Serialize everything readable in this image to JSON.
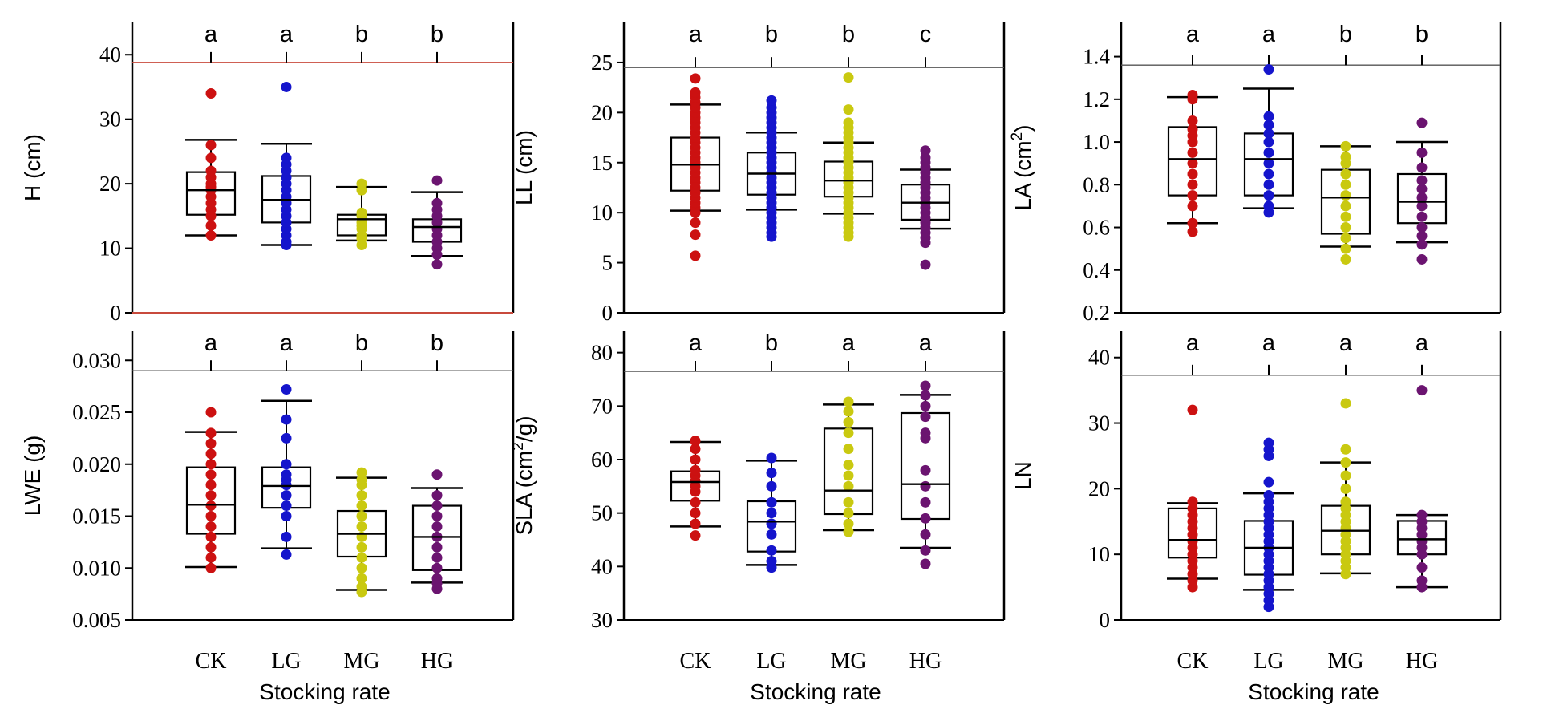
{
  "x_axis_title": "Stocking rate",
  "colors": {
    "CK": "#cc1111",
    "LG": "#1515cc",
    "MG": "#c9c910",
    "HG": "#6b1470"
  },
  "chart_data": [
    {
      "type": "box",
      "ylabel": "H (cm)",
      "yticks": [
        "0",
        "10",
        "20",
        "30",
        "40"
      ],
      "ylim": [
        0,
        45
      ],
      "ref_line": 38.8,
      "ref_line_color": "#c84a3c",
      "bottom_line_color": "#c84a3c",
      "categories": [
        "CK",
        "LG",
        "MG",
        "HG"
      ],
      "letters": [
        "a",
        "a",
        "b",
        "b"
      ],
      "boxes": [
        {
          "min": 12,
          "q1": 15.2,
          "median": 19,
          "q3": 21.8,
          "max": 26.8
        },
        {
          "min": 10.5,
          "q1": 14,
          "median": 17.5,
          "q3": 21.2,
          "max": 26.2
        },
        {
          "min": 11.2,
          "q1": 12,
          "median": 14.5,
          "q3": 15.2,
          "max": 19.5
        },
        {
          "min": 8.8,
          "q1": 11,
          "median": 13.3,
          "q3": 14.5,
          "max": 18.7
        }
      ],
      "points": [
        [
          12,
          13.5,
          15,
          16,
          17,
          18,
          19,
          19.5,
          20,
          21,
          22,
          24,
          26,
          34
        ],
        [
          10.5,
          11,
          12,
          13,
          14,
          15,
          16,
          17,
          18,
          19,
          20,
          21,
          22,
          23,
          24,
          35
        ],
        [
          10.5,
          11.5,
          12,
          13,
          13.5,
          14,
          15,
          15.5,
          19,
          20
        ],
        [
          7.5,
          9,
          10,
          11,
          12,
          13,
          14,
          15,
          16,
          17,
          20.5
        ]
      ]
    },
    {
      "type": "box",
      "ylabel": "LL (cm)",
      "yticks": [
        "0",
        "5",
        "10",
        "15",
        "20",
        "25"
      ],
      "ylim": [
        0,
        29
      ],
      "ref_line": 24.5,
      "categories": [
        "CK",
        "LG",
        "MG",
        "HG"
      ],
      "letters": [
        "a",
        "b",
        "b",
        "c"
      ],
      "boxes": [
        {
          "min": 10.2,
          "q1": 12.2,
          "median": 14.8,
          "q3": 17.5,
          "max": 20.8
        },
        {
          "min": 10.3,
          "q1": 11.8,
          "median": 13.9,
          "q3": 16.0,
          "max": 18.0
        },
        {
          "min": 9.9,
          "q1": 11.6,
          "median": 13.2,
          "q3": 15.1,
          "max": 17.0
        },
        {
          "min": 8.4,
          "q1": 9.3,
          "median": 11.0,
          "q3": 12.8,
          "max": 14.3
        }
      ],
      "points": [
        [
          5.7,
          7.8,
          9,
          10,
          10.5,
          11,
          11.5,
          12,
          12.5,
          13,
          13.5,
          14,
          14.5,
          15,
          15.5,
          16,
          16.5,
          17,
          17.5,
          18,
          18.5,
          19,
          19.5,
          20,
          20.5,
          21,
          21.5,
          22,
          23.4
        ],
        [
          7.6,
          8,
          8.5,
          9,
          9.5,
          10,
          10.5,
          11,
          11.5,
          12,
          12.5,
          13,
          13.5,
          14,
          14.5,
          15,
          15.5,
          16,
          16.5,
          17,
          17.5,
          18,
          18.5,
          19,
          19.5,
          20,
          20.5,
          21.2
        ],
        [
          7.6,
          8,
          8.5,
          9,
          9.5,
          10,
          10.5,
          11,
          11.5,
          12,
          12.5,
          13,
          13.5,
          14,
          14.5,
          15,
          15.5,
          16,
          16.5,
          17,
          17.5,
          18,
          18.5,
          19,
          20.3,
          23.5
        ],
        [
          4.8,
          7,
          7.5,
          8,
          8.5,
          9,
          9.5,
          10,
          10.5,
          11,
          11.5,
          12,
          12.5,
          13,
          13.5,
          14,
          14.5,
          15,
          15.5,
          16.2
        ]
      ]
    },
    {
      "type": "box",
      "ylabel": "LA (cm²)",
      "ylabel_main": "LA (cm",
      "ylabel_sup": "2",
      "ylabel_end": ")",
      "yticks": [
        "0.2",
        "0.4",
        "0.6",
        "0.8",
        "1.0",
        "1.2",
        "1.4"
      ],
      "ylim": [
        0.2,
        1.56
      ],
      "ref_line": 1.36,
      "categories": [
        "CK",
        "LG",
        "MG",
        "HG"
      ],
      "letters": [
        "a",
        "a",
        "b",
        "b"
      ],
      "boxes": [
        {
          "min": 0.62,
          "q1": 0.75,
          "median": 0.92,
          "q3": 1.07,
          "max": 1.21
        },
        {
          "min": 0.69,
          "q1": 0.75,
          "median": 0.92,
          "q3": 1.04,
          "max": 1.25
        },
        {
          "min": 0.51,
          "q1": 0.57,
          "median": 0.74,
          "q3": 0.87,
          "max": 0.98
        },
        {
          "min": 0.53,
          "q1": 0.62,
          "median": 0.72,
          "q3": 0.85,
          "max": 1.0
        }
      ],
      "points": [
        [
          0.58,
          0.62,
          0.7,
          0.75,
          0.8,
          0.85,
          0.9,
          0.95,
          1.0,
          1.03,
          1.06,
          1.1,
          1.2,
          1.22
        ],
        [
          0.67,
          0.7,
          0.75,
          0.8,
          0.85,
          0.9,
          0.95,
          1.0,
          1.04,
          1.08,
          1.12,
          1.34
        ],
        [
          0.45,
          0.5,
          0.55,
          0.6,
          0.65,
          0.7,
          0.75,
          0.8,
          0.85,
          0.9,
          0.93,
          0.98
        ],
        [
          0.45,
          0.52,
          0.56,
          0.6,
          0.65,
          0.7,
          0.74,
          0.78,
          0.82,
          0.88,
          0.95,
          1.09
        ]
      ]
    },
    {
      "type": "box",
      "ylabel": "LWE (g)",
      "yticks": [
        "0.005",
        "0.010",
        "0.015",
        "0.020",
        "0.025",
        "0.030"
      ],
      "ylim": [
        0.005,
        0.0328
      ],
      "ref_line": 0.029,
      "categories": [
        "CK",
        "LG",
        "MG",
        "HG"
      ],
      "letters": [
        "a",
        "a",
        "b",
        "b"
      ],
      "boxes": [
        {
          "min": 0.0101,
          "q1": 0.0133,
          "median": 0.0161,
          "q3": 0.0197,
          "max": 0.0231
        },
        {
          "min": 0.0119,
          "q1": 0.0158,
          "median": 0.0179,
          "q3": 0.0197,
          "max": 0.0261
        },
        {
          "min": 0.0079,
          "q1": 0.0111,
          "median": 0.0133,
          "q3": 0.0155,
          "max": 0.0187
        },
        {
          "min": 0.0086,
          "q1": 0.0098,
          "median": 0.013,
          "q3": 0.016,
          "max": 0.0177
        }
      ],
      "points": [
        [
          0.01,
          0.011,
          0.012,
          0.013,
          0.014,
          0.015,
          0.016,
          0.017,
          0.018,
          0.019,
          0.02,
          0.021,
          0.022,
          0.023,
          0.025
        ],
        [
          0.0113,
          0.013,
          0.015,
          0.016,
          0.017,
          0.018,
          0.0185,
          0.019,
          0.02,
          0.0225,
          0.0243,
          0.0272
        ],
        [
          0.0077,
          0.0082,
          0.009,
          0.01,
          0.011,
          0.012,
          0.013,
          0.014,
          0.015,
          0.016,
          0.017,
          0.018,
          0.0185,
          0.0192
        ],
        [
          0.008,
          0.0085,
          0.009,
          0.01,
          0.011,
          0.012,
          0.013,
          0.014,
          0.015,
          0.016,
          0.017,
          0.019
        ]
      ]
    },
    {
      "type": "box",
      "ylabel": "SLA (cm²/g)",
      "ylabel_main": "SLA  (cm",
      "ylabel_sup": "2",
      "ylabel_end": "/g)",
      "yticks": [
        "30",
        "40",
        "50",
        "60",
        "70",
        "80"
      ],
      "ylim": [
        30,
        84
      ],
      "ref_line": 76.5,
      "categories": [
        "CK",
        "LG",
        "MG",
        "HG"
      ],
      "letters": [
        "a",
        "b",
        "a",
        "a"
      ],
      "boxes": [
        {
          "min": 47.5,
          "q1": 52.3,
          "median": 55.8,
          "q3": 57.8,
          "max": 63.3
        },
        {
          "min": 40.3,
          "q1": 42.8,
          "median": 48.4,
          "q3": 52.2,
          "max": 59.8
        },
        {
          "min": 46.8,
          "q1": 49.8,
          "median": 54.2,
          "q3": 65.8,
          "max": 70.3
        },
        {
          "min": 43.5,
          "q1": 48.9,
          "median": 55.4,
          "q3": 68.7,
          "max": 72.1
        }
      ],
      "points": [
        [
          45.8,
          48,
          50,
          52,
          54,
          55,
          56,
          57,
          58,
          60,
          62,
          63.5
        ],
        [
          39.8,
          41,
          43,
          46,
          48,
          50,
          52,
          55,
          57.5,
          60.3
        ],
        [
          46.5,
          48,
          50,
          52,
          55,
          57,
          59,
          62,
          65,
          67,
          69,
          70.8
        ],
        [
          40.5,
          43,
          46,
          49,
          52,
          55,
          58,
          64,
          65,
          68,
          70,
          72,
          73.8
        ]
      ]
    },
    {
      "type": "box",
      "ylabel": "LN",
      "yticks": [
        "0",
        "10",
        "20",
        "30",
        "40"
      ],
      "ylim": [
        0,
        44
      ],
      "ref_line": 37.3,
      "categories": [
        "CK",
        "LG",
        "MG",
        "HG"
      ],
      "letters": [
        "a",
        "a",
        "a",
        "a"
      ],
      "boxes": [
        {
          "min": 6.3,
          "q1": 9.5,
          "median": 12.2,
          "q3": 17.0,
          "max": 17.8
        },
        {
          "min": 4.6,
          "q1": 6.9,
          "median": 11.0,
          "q3": 15.1,
          "max": 19.3
        },
        {
          "min": 7.1,
          "q1": 10.0,
          "median": 13.6,
          "q3": 17.4,
          "max": 24.0
        },
        {
          "min": 5.0,
          "q1": 10.0,
          "median": 12.3,
          "q3": 15.1,
          "max": 16.0
        }
      ],
      "points": [
        [
          5,
          6,
          7,
          8,
          9,
          10,
          11,
          12,
          13,
          14,
          15,
          16,
          17,
          18,
          32
        ],
        [
          2,
          3,
          4,
          5,
          6,
          7,
          8,
          9,
          10,
          11,
          12,
          13,
          14,
          15,
          16,
          17,
          18,
          19,
          21,
          25,
          26,
          27
        ],
        [
          7,
          8,
          9,
          10,
          11,
          12,
          13,
          14,
          15,
          16,
          17,
          18,
          20,
          22,
          24,
          26,
          33
        ],
        [
          5,
          6,
          8,
          10,
          11,
          12,
          13,
          14,
          15,
          16,
          35
        ]
      ]
    }
  ]
}
